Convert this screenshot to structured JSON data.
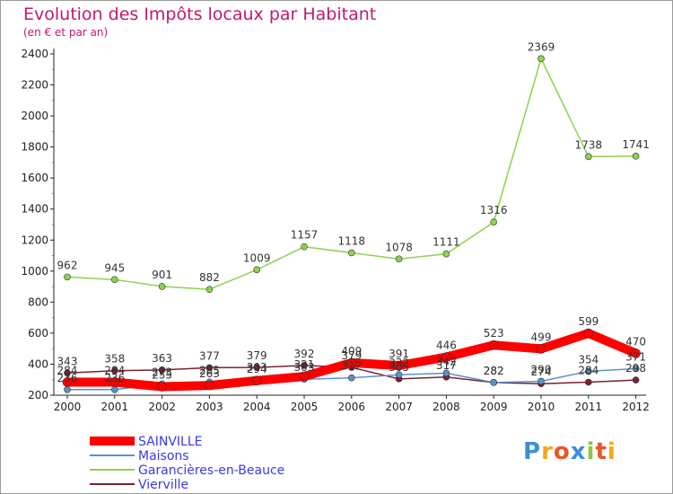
{
  "title": "Evolution des Impôts locaux par Habitant",
  "subtitle": "(en € et par an)",
  "logo": {
    "text": "Proxiti"
  },
  "chart_data": {
    "type": "line",
    "x": [
      "2000",
      "2001",
      "2002",
      "2003",
      "2004",
      "2005",
      "2006",
      "2007",
      "2008",
      "2009",
      "2010",
      "2011",
      "2012"
    ],
    "ylim": [
      200,
      2400
    ],
    "yticks": [
      200,
      400,
      600,
      800,
      1000,
      1200,
      1400,
      1600,
      1800,
      2000,
      2200,
      2400
    ],
    "grid": false,
    "legend_position": "bottom",
    "series": [
      {
        "name": "SAINVILLE",
        "color": "#ff0000",
        "values": [
          284,
          284,
          255,
          263,
          294,
          321,
          409,
          391,
          446,
          523,
          499,
          599,
          470
        ]
      },
      {
        "name": "Maisons",
        "color": "#5b92c8",
        "values": [
          236,
          236,
          273,
          285,
          303,
          303,
          312,
          332,
          342,
          282,
          290,
          354,
          371
        ]
      },
      {
        "name": "Garancières-en-Beauce",
        "color": "#8ed24f",
        "values": [
          962,
          945,
          901,
          882,
          1009,
          1157,
          1118,
          1078,
          1111,
          1316,
          2369,
          1738,
          1741
        ]
      },
      {
        "name": "Vierville",
        "color": "#7a2230",
        "values": [
          343,
          358,
          363,
          377,
          379,
          392,
          379,
          305,
          317,
          282,
          274,
          284,
          298
        ]
      }
    ]
  }
}
